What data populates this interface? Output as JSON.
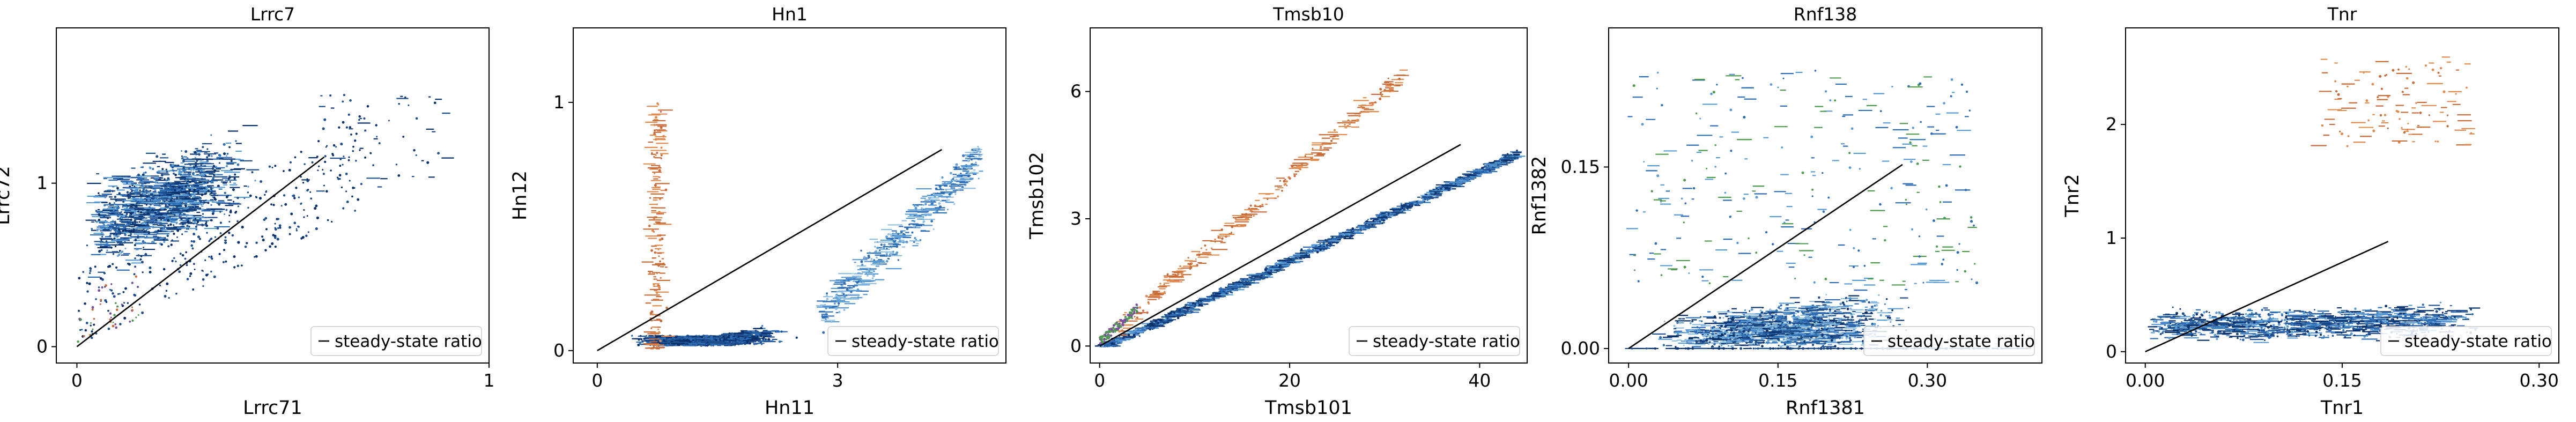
{
  "legend_label": "steady-state ratio",
  "colors": {
    "line": "#000000",
    "palette": [
      "#08306b",
      "#1f4e8c",
      "#2e6db4",
      "#5a9bd4",
      "#8fbfe0",
      "#3b5b92",
      "#c76b3a",
      "#e08c50",
      "#4f9a4f",
      "#7a4fa0"
    ]
  },
  "chart_data": [
    {
      "type": "scatter",
      "title": "Lrrc7",
      "xlabel": "Lrrc71",
      "ylabel": "Lrrc72",
      "xlim": [
        -0.05,
        1.0
      ],
      "ylim": [
        -0.1,
        1.95
      ],
      "xticks": [
        {
          "v": 0,
          "label": "0"
        },
        {
          "v": 1,
          "label": "1"
        }
      ],
      "yticks": [
        {
          "v": 0,
          "label": "0"
        },
        {
          "v": 1,
          "label": "1"
        }
      ],
      "steady_state_line": {
        "x": [
          0,
          0.6
        ],
        "y": [
          0,
          1.16
        ]
      },
      "legend_loc": "lower right",
      "grid": false
    },
    {
      "type": "scatter",
      "title": "Hn1",
      "xlabel": "Hn11",
      "ylabel": "Hn12",
      "xlim": [
        -0.3,
        5.1
      ],
      "ylim": [
        -0.05,
        1.3
      ],
      "xticks": [
        {
          "v": 0,
          "label": "0"
        },
        {
          "v": 3,
          "label": "3"
        }
      ],
      "yticks": [
        {
          "v": 0,
          "label": "0"
        },
        {
          "v": 1,
          "label": "1"
        }
      ],
      "steady_state_line": {
        "x": [
          0,
          4.3
        ],
        "y": [
          0,
          0.81
        ]
      },
      "legend_loc": "lower right",
      "grid": false
    },
    {
      "type": "scatter",
      "title": "Tmsb10",
      "xlabel": "Tmsb101",
      "ylabel": "Tmsb102",
      "xlim": [
        -1,
        45
      ],
      "ylim": [
        -0.4,
        7.5
      ],
      "xticks": [
        {
          "v": 0,
          "label": "0"
        },
        {
          "v": 20,
          "label": "20"
        },
        {
          "v": 40,
          "label": "40"
        }
      ],
      "yticks": [
        {
          "v": 0,
          "label": "0"
        },
        {
          "v": 3,
          "label": "3"
        },
        {
          "v": 6,
          "label": "6"
        }
      ],
      "steady_state_line": {
        "x": [
          0,
          38
        ],
        "y": [
          0,
          4.75
        ]
      },
      "legend_loc": "lower right",
      "grid": false
    },
    {
      "type": "scatter",
      "title": "Rnf138",
      "xlabel": "Rnf1381",
      "ylabel": "Rnf1382",
      "xlim": [
        -0.02,
        0.415
      ],
      "ylim": [
        -0.012,
        0.265
      ],
      "xticks": [
        {
          "v": 0,
          "label": "0.00"
        },
        {
          "v": 0.15,
          "label": "0.15"
        },
        {
          "v": 0.3,
          "label": "0.30"
        }
      ],
      "yticks": [
        {
          "v": 0,
          "label": "0.00"
        },
        {
          "v": 0.15,
          "label": "0.15"
        }
      ],
      "steady_state_line": {
        "x": [
          0,
          0.275
        ],
        "y": [
          0,
          0.152
        ]
      },
      "legend_loc": "lower right",
      "grid": false
    },
    {
      "type": "scatter",
      "title": "Tnr",
      "xlabel": "Tnr1",
      "ylabel": "Tnr2",
      "xlim": [
        -0.015,
        0.315
      ],
      "ylim": [
        -0.1,
        2.85
      ],
      "xticks": [
        {
          "v": 0,
          "label": "0.00"
        },
        {
          "v": 0.15,
          "label": "0.15"
        },
        {
          "v": 0.3,
          "label": "0.30"
        }
      ],
      "yticks": [
        {
          "v": 0,
          "label": "0"
        },
        {
          "v": 1,
          "label": "1"
        },
        {
          "v": 2,
          "label": "2"
        }
      ],
      "steady_state_line": {
        "x": [
          0,
          0.185
        ],
        "y": [
          0,
          0.97
        ]
      },
      "legend_loc": "lower right",
      "grid": false
    }
  ]
}
